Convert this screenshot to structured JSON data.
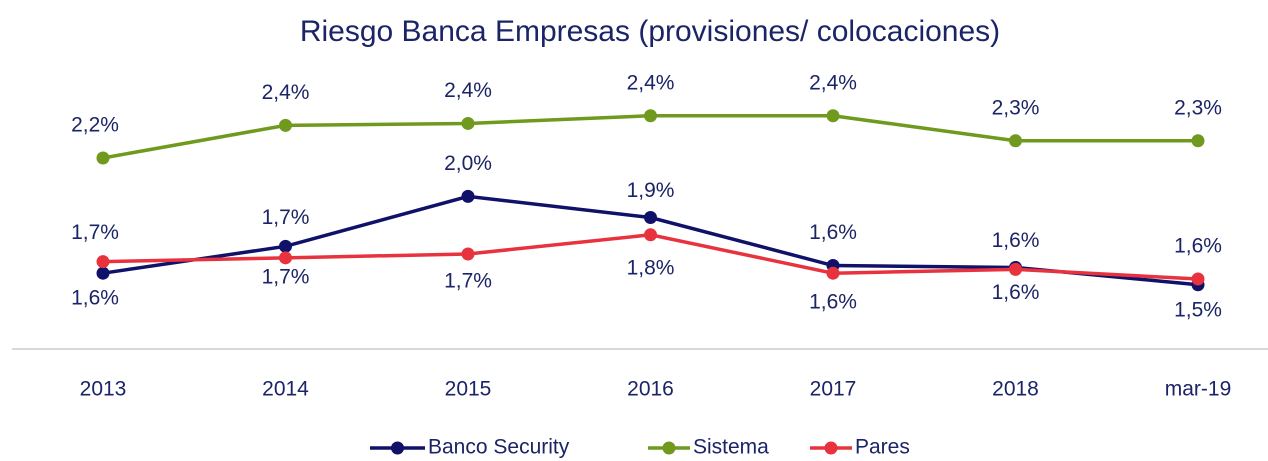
{
  "chart_data": {
    "type": "line",
    "title": "Riesgo Banca Empresas (provisiones/ colocaciones)",
    "categories": [
      "2013",
      "2014",
      "2015",
      "2016",
      "2017",
      "2018",
      "mar-19"
    ],
    "ylim": [
      1.2,
      2.7
    ],
    "series": [
      {
        "name": "Banco Security",
        "color": "#0f1268",
        "values": [
          1.6,
          1.74,
          2.0,
          1.89,
          1.64,
          1.63,
          1.54
        ],
        "value_labels": [
          "1,6%",
          "1,7%",
          "2,0%",
          "1,9%",
          "1,6%",
          "1,6%",
          "1,5%"
        ]
      },
      {
        "name": "Sistema",
        "color": "#6f9a1e",
        "values": [
          2.2,
          2.37,
          2.38,
          2.42,
          2.42,
          2.29,
          2.29
        ],
        "value_labels": [
          "2,2%",
          "2,4%",
          "2,4%",
          "2,4%",
          "2,4%",
          "2,3%",
          "2,3%"
        ]
      },
      {
        "name": "Pares",
        "color": "#e8333f",
        "values": [
          1.66,
          1.68,
          1.7,
          1.8,
          1.6,
          1.62,
          1.57
        ],
        "value_labels": [
          "1,7%",
          "1,7%",
          "1,7%",
          "1,8%",
          "1,6%",
          "1,6%",
          "1,6%"
        ]
      }
    ]
  }
}
